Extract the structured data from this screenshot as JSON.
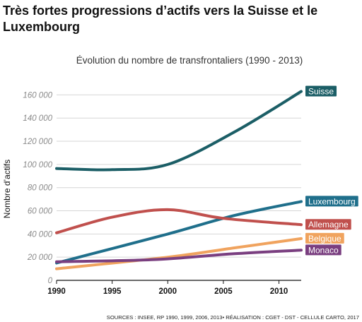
{
  "headline": "Très fortes progressions d’actifs vers la Suisse et le Luxembourg",
  "source": "SOURCES : INSEE, RP 1990, 1999, 2006, 2013• RÉALISATION :  CGET - DST - CELLULE CARTO, 2017",
  "chart_data": {
    "type": "line",
    "title": "Évolution du nombre de transfrontaliers (1990 - 2013)",
    "ylabel": "Nombre d’actifs",
    "xlabel": "",
    "xlim": [
      1990,
      2012
    ],
    "ylim": [
      0,
      170000
    ],
    "xticks": [
      1990,
      1995,
      2000,
      2005,
      2010
    ],
    "yticks": [
      0,
      20000,
      40000,
      60000,
      80000,
      100000,
      120000,
      140000,
      160000
    ],
    "ytick_labels": [
      "0",
      "20 000",
      "40 000",
      "60 000",
      "80 000",
      "100 000",
      "120 000",
      "140 000",
      "160 000"
    ],
    "grid": "horizontal",
    "series": [
      {
        "name": "Suisse",
        "color": "#1b5e66",
        "x": [
          1990,
          1995,
          2000,
          2006,
          2012
        ],
        "y": [
          96500,
          95500,
          100000,
          128000,
          163000
        ]
      },
      {
        "name": "Luxembourg",
        "color": "#1f6f8b",
        "x": [
          1990,
          2000,
          2006,
          2012
        ],
        "y": [
          15000,
          40000,
          56000,
          68000
        ]
      },
      {
        "name": "Allemagne",
        "color": "#c0504d",
        "x": [
          1990,
          1995,
          2000,
          2005,
          2012
        ],
        "y": [
          41000,
          54500,
          61000,
          53500,
          48000
        ]
      },
      {
        "name": "Belgique",
        "color": "#f0a35e",
        "x": [
          1990,
          2000,
          2006,
          2012
        ],
        "y": [
          10000,
          20000,
          28000,
          36000
        ]
      },
      {
        "name": "Monaco",
        "color": "#7a3f80",
        "x": [
          1990,
          1999,
          2006,
          2012
        ],
        "y": [
          16000,
          18000,
          23000,
          26000
        ]
      }
    ]
  }
}
